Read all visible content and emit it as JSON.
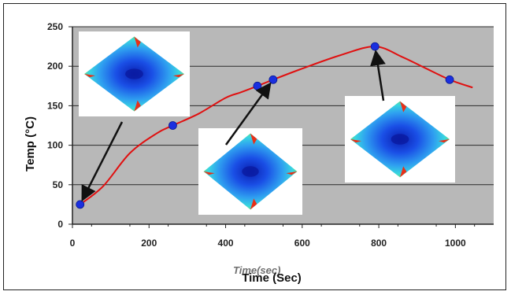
{
  "chart_data": {
    "type": "line",
    "title": "",
    "xlabel": "Time (Sec)",
    "ylabel": "Temp (°C)",
    "overlapping_label": "Time(sec)",
    "xlim": [
      0,
      1100
    ],
    "ylim": [
      0,
      250
    ],
    "x_ticks": [
      0,
      200,
      400,
      600,
      800,
      1000
    ],
    "y_ticks": [
      0,
      50,
      100,
      150,
      200,
      250
    ],
    "grid": "horizontal",
    "background_color": "#b8b8b8",
    "line_color": "#e01010",
    "marker_color": "#1a2fe0",
    "series": [
      {
        "x": [
          20,
          80,
          150,
          220,
          262,
          330,
          400,
          440,
          483,
          524,
          600,
          700,
          790,
          860,
          920,
          985,
          1045
        ],
        "y": [
          25,
          48,
          90,
          115,
          125,
          140,
          160,
          167,
          175,
          183,
          197,
          214,
          225,
          212,
          198,
          183,
          173
        ]
      }
    ],
    "markers": [
      {
        "x": 20,
        "y": 25
      },
      {
        "x": 262,
        "y": 125
      },
      {
        "x": 483,
        "y": 175
      },
      {
        "x": 524,
        "y": 183
      },
      {
        "x": 790,
        "y": 225
      },
      {
        "x": 985,
        "y": 183
      }
    ],
    "annotations": [
      {
        "name": "inset-map-early",
        "arrow_to": {
          "x": 20,
          "y": 25
        }
      },
      {
        "name": "inset-map-middle",
        "arrow_to": {
          "x": 524,
          "y": 183
        }
      },
      {
        "name": "inset-map-peak",
        "arrow_to": {
          "x": 790,
          "y": 225
        }
      }
    ]
  }
}
